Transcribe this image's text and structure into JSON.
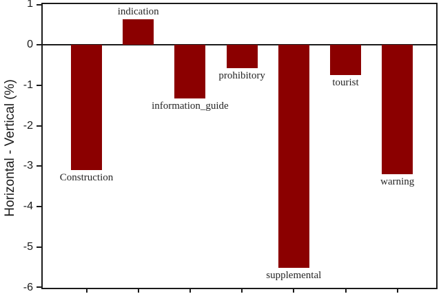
{
  "chart_data": {
    "type": "bar",
    "title": "",
    "xlabel": "",
    "ylabel": "Horizontal - Vertical (%)",
    "ylim": [
      -6,
      1
    ],
    "yticks": [
      1,
      0,
      -1,
      -2,
      -3,
      -4,
      -5,
      -6
    ],
    "grid": false,
    "legend_position": "none",
    "bar_color": "#8B0000",
    "categories": [
      "Construction",
      "indication",
      "information_guide",
      "prohibitory",
      "supplemental",
      "tourist",
      "warning"
    ],
    "values": [
      -3.1,
      0.62,
      -1.32,
      -0.58,
      -5.5,
      -0.75,
      -3.2
    ],
    "value_label_placement": [
      "below",
      "above",
      "below",
      "below",
      "below",
      "below",
      "below"
    ]
  }
}
